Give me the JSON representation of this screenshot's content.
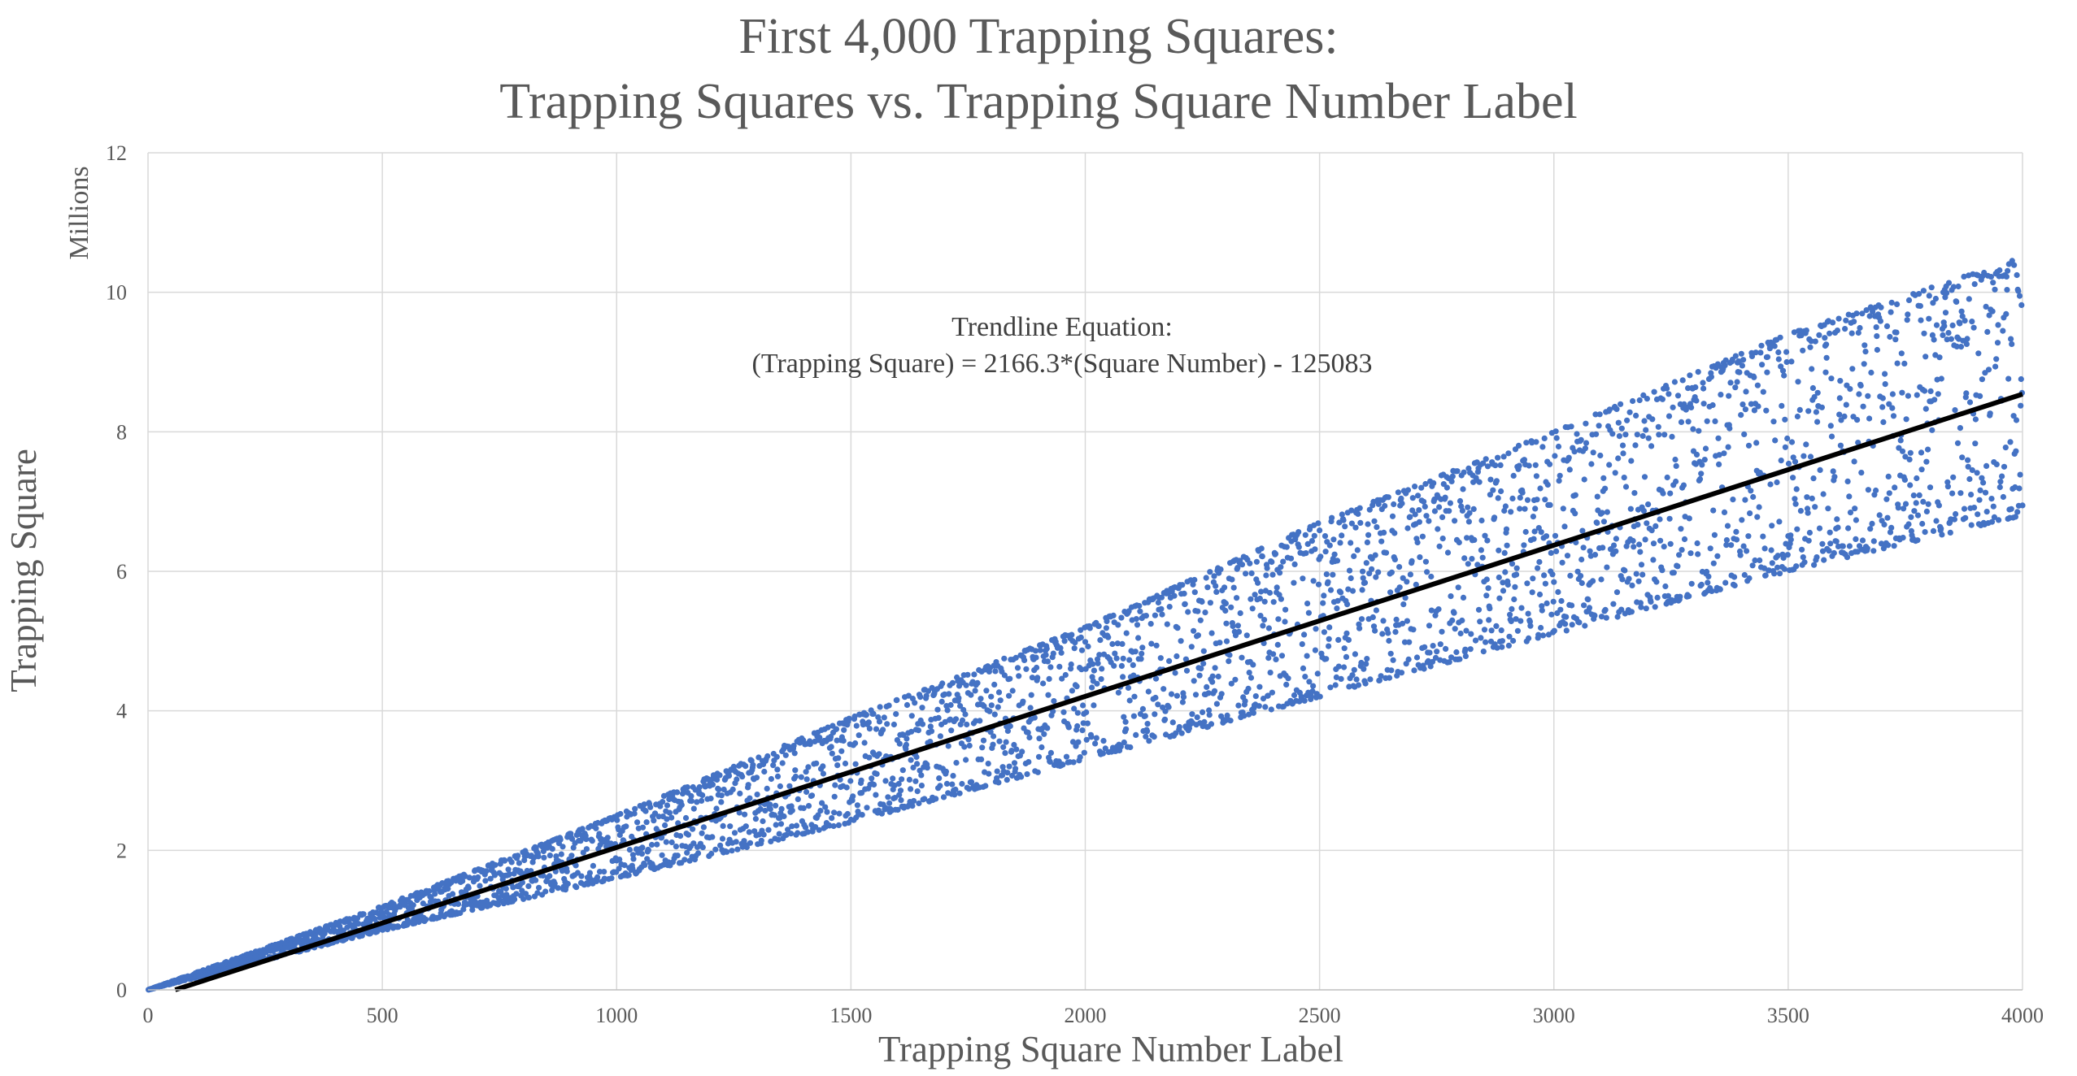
{
  "chart_data": {
    "type": "scatter",
    "title": "First 4,000 Trapping Squares:",
    "subtitle": "Trapping Squares vs. Trapping Square Number Label",
    "xlabel": "Trapping Square Number Label",
    "ylabel": "Trapping Square",
    "y_units_label": "Millions",
    "xlim": [
      0,
      4000
    ],
    "ylim": [
      0,
      12
    ],
    "x_ticks": [
      "0",
      "500",
      "1000",
      "1500",
      "2000",
      "2500",
      "3000",
      "3500",
      "4000"
    ],
    "y_ticks": [
      "0",
      "2",
      "4",
      "6",
      "8",
      "10",
      "12"
    ],
    "grid": true,
    "legend": "none",
    "point_count": 4000,
    "point_color": "#4472C4",
    "trendline_color": "#000000",
    "trendline": {
      "slope": 2166.3,
      "intercept": -125083,
      "x_range": [
        58,
        4000
      ]
    },
    "annotation": {
      "line1": "Trendline Equation:",
      "line2": "(Trapping Square) = 2166.3*(Square Number) - 125083"
    },
    "series": [
      {
        "name": "",
        "envelope_y_millions": {
          "x": [
            0,
            500,
            1000,
            1500,
            2000,
            2500,
            3000,
            3500,
            4000
          ],
          "upper": [
            0,
            1.2,
            2.5,
            3.9,
            5.2,
            6.7,
            8.0,
            9.4,
            10.5
          ],
          "lower": [
            0,
            0.85,
            1.6,
            2.4,
            3.3,
            4.2,
            5.1,
            6.0,
            6.8
          ]
        }
      }
    ]
  }
}
